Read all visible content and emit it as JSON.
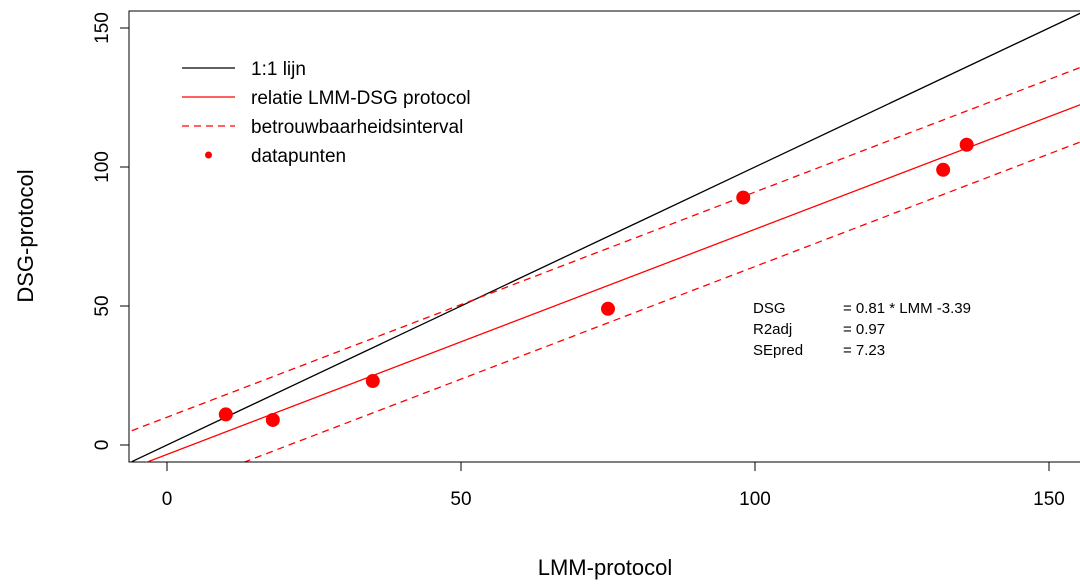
{
  "chart_data": {
    "type": "scatter",
    "xlabel": "LMM-protocol",
    "ylabel": "DSG-protocol",
    "xlim": [
      -6,
      156
    ],
    "ylim": [
      -6,
      156
    ],
    "xticks": [
      0,
      50,
      100,
      150
    ],
    "yticks": [
      0,
      50,
      100,
      150
    ],
    "xtick_labels": [
      "0",
      "50",
      "100",
      "150"
    ],
    "ytick_labels": [
      "0",
      "50",
      "100",
      "150"
    ],
    "grid": false,
    "legend_position": "top-left",
    "series": [
      {
        "name": "1:1 lijn",
        "kind": "line",
        "color": "#000000",
        "dash": "solid",
        "slope": 1.0,
        "intercept": 0.0
      },
      {
        "name": "relatie LMM-DSG protocol",
        "kind": "line",
        "color": "#ff0000",
        "dash": "solid",
        "slope": 0.81,
        "intercept": -3.39
      },
      {
        "name": "betrouwbaarheidsinterval",
        "kind": "interval",
        "color": "#ff0000",
        "dash": "dashed",
        "upper": {
          "slope": 0.81,
          "intercept": 10.0
        },
        "lower": {
          "slope": 0.81,
          "intercept": -16.8
        }
      },
      {
        "name": "datapunten",
        "kind": "points",
        "color": "#ff0000",
        "points": [
          {
            "x": 10,
            "y": 11
          },
          {
            "x": 18,
            "y": 9
          },
          {
            "x": 35,
            "y": 23
          },
          {
            "x": 75,
            "y": 49
          },
          {
            "x": 98,
            "y": 89
          },
          {
            "x": 132,
            "y": 99
          },
          {
            "x": 136,
            "y": 108
          }
        ]
      }
    ],
    "annotations": [
      {
        "label": "DSG",
        "value": "= 0.81 * LMM  -3.39"
      },
      {
        "label": "R2adj",
        "value": "= 0.97"
      },
      {
        "label": "SEpred",
        "value": "= 7.23"
      }
    ]
  }
}
